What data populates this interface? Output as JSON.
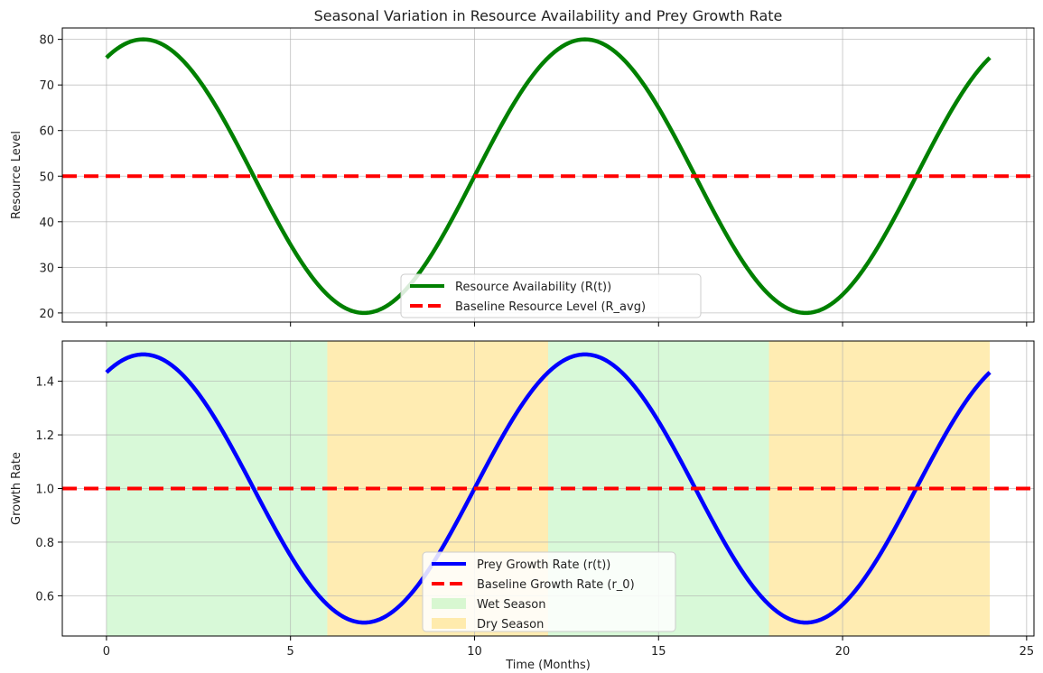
{
  "chart_data": [
    {
      "type": "line",
      "title": "Seasonal Variation in Resource Availability and Prey Growth Rate",
      "xlabel": "",
      "ylabel": "Resource Level",
      "xlim": [
        -1.2,
        25.2
      ],
      "ylim": [
        18,
        82.5
      ],
      "xticks": [
        0,
        5,
        10,
        15,
        20,
        25
      ],
      "xtick_labels": [],
      "yticks": [
        20,
        30,
        40,
        50,
        60,
        70,
        80
      ],
      "ytick_labels": [
        "20",
        "30",
        "40",
        "50",
        "60",
        "70",
        "80"
      ],
      "grid": true,
      "legend_position": "lower center",
      "curve": {
        "function": "50 + 30*sin(2*pi*t/12 + pi/3)",
        "t_range": [
          0,
          24
        ]
      },
      "series": [
        {
          "name": "Resource Availability (R(t))",
          "color": "#008000",
          "style": "solid",
          "x": [
            0,
            1,
            2,
            3,
            4,
            5,
            6,
            7,
            8,
            9,
            10,
            11,
            12,
            13,
            14,
            15,
            16,
            17,
            18,
            19,
            20,
            21,
            22,
            23,
            24
          ],
          "values": [
            76.0,
            80.0,
            76.0,
            65.0,
            50.0,
            35.0,
            24.0,
            20.0,
            24.0,
            35.0,
            50.0,
            65.0,
            76.0,
            80.0,
            76.0,
            65.0,
            50.0,
            35.0,
            24.0,
            20.0,
            24.0,
            35.0,
            50.0,
            65.0,
            76.0
          ]
        },
        {
          "name": "Baseline Resource Level (R_avg)",
          "color": "#ff0000",
          "style": "dashed",
          "hline": 50
        }
      ]
    },
    {
      "type": "line",
      "title": "",
      "xlabel": "Time (Months)",
      "ylabel": "Growth Rate",
      "xlim": [
        -1.2,
        25.2
      ],
      "ylim": [
        0.45,
        1.55
      ],
      "xticks": [
        0,
        5,
        10,
        15,
        20,
        25
      ],
      "xtick_labels": [
        "0",
        "5",
        "10",
        "15",
        "20",
        "25"
      ],
      "yticks": [
        0.6,
        0.8,
        1.0,
        1.2,
        1.4
      ],
      "ytick_labels": [
        "0.6",
        "0.8",
        "1.0",
        "1.2",
        "1.4"
      ],
      "grid": true,
      "legend_position": "lower center",
      "curve": {
        "function": "1 + 0.5*sin(2*pi*t/12 + pi/3)",
        "t_range": [
          0,
          24
        ]
      },
      "series": [
        {
          "name": "Prey Growth Rate (r(t))",
          "color": "#0000ff",
          "style": "solid",
          "x": [
            0,
            1,
            2,
            3,
            4,
            5,
            6,
            7,
            8,
            9,
            10,
            11,
            12,
            13,
            14,
            15,
            16,
            17,
            18,
            19,
            20,
            21,
            22,
            23,
            24
          ],
          "values": [
            1.43,
            1.5,
            1.43,
            1.25,
            1.0,
            0.75,
            0.57,
            0.5,
            0.57,
            0.75,
            1.0,
            1.25,
            1.43,
            1.5,
            1.43,
            1.25,
            1.0,
            0.75,
            0.57,
            0.5,
            0.57,
            0.75,
            1.0,
            1.25,
            1.43
          ]
        },
        {
          "name": "Baseline Growth Rate (r_0)",
          "color": "#ff0000",
          "style": "dashed",
          "hline": 1.0
        }
      ],
      "spans": [
        {
          "name": "Wet Season",
          "color": "#90ee90",
          "opacity": 0.35,
          "ranges": [
            [
              0,
              6
            ],
            [
              12,
              18
            ]
          ]
        },
        {
          "name": "Dry Season",
          "color": "#ffd966",
          "opacity": 0.5,
          "ranges": [
            [
              6,
              12
            ],
            [
              18,
              24
            ]
          ]
        }
      ]
    }
  ]
}
